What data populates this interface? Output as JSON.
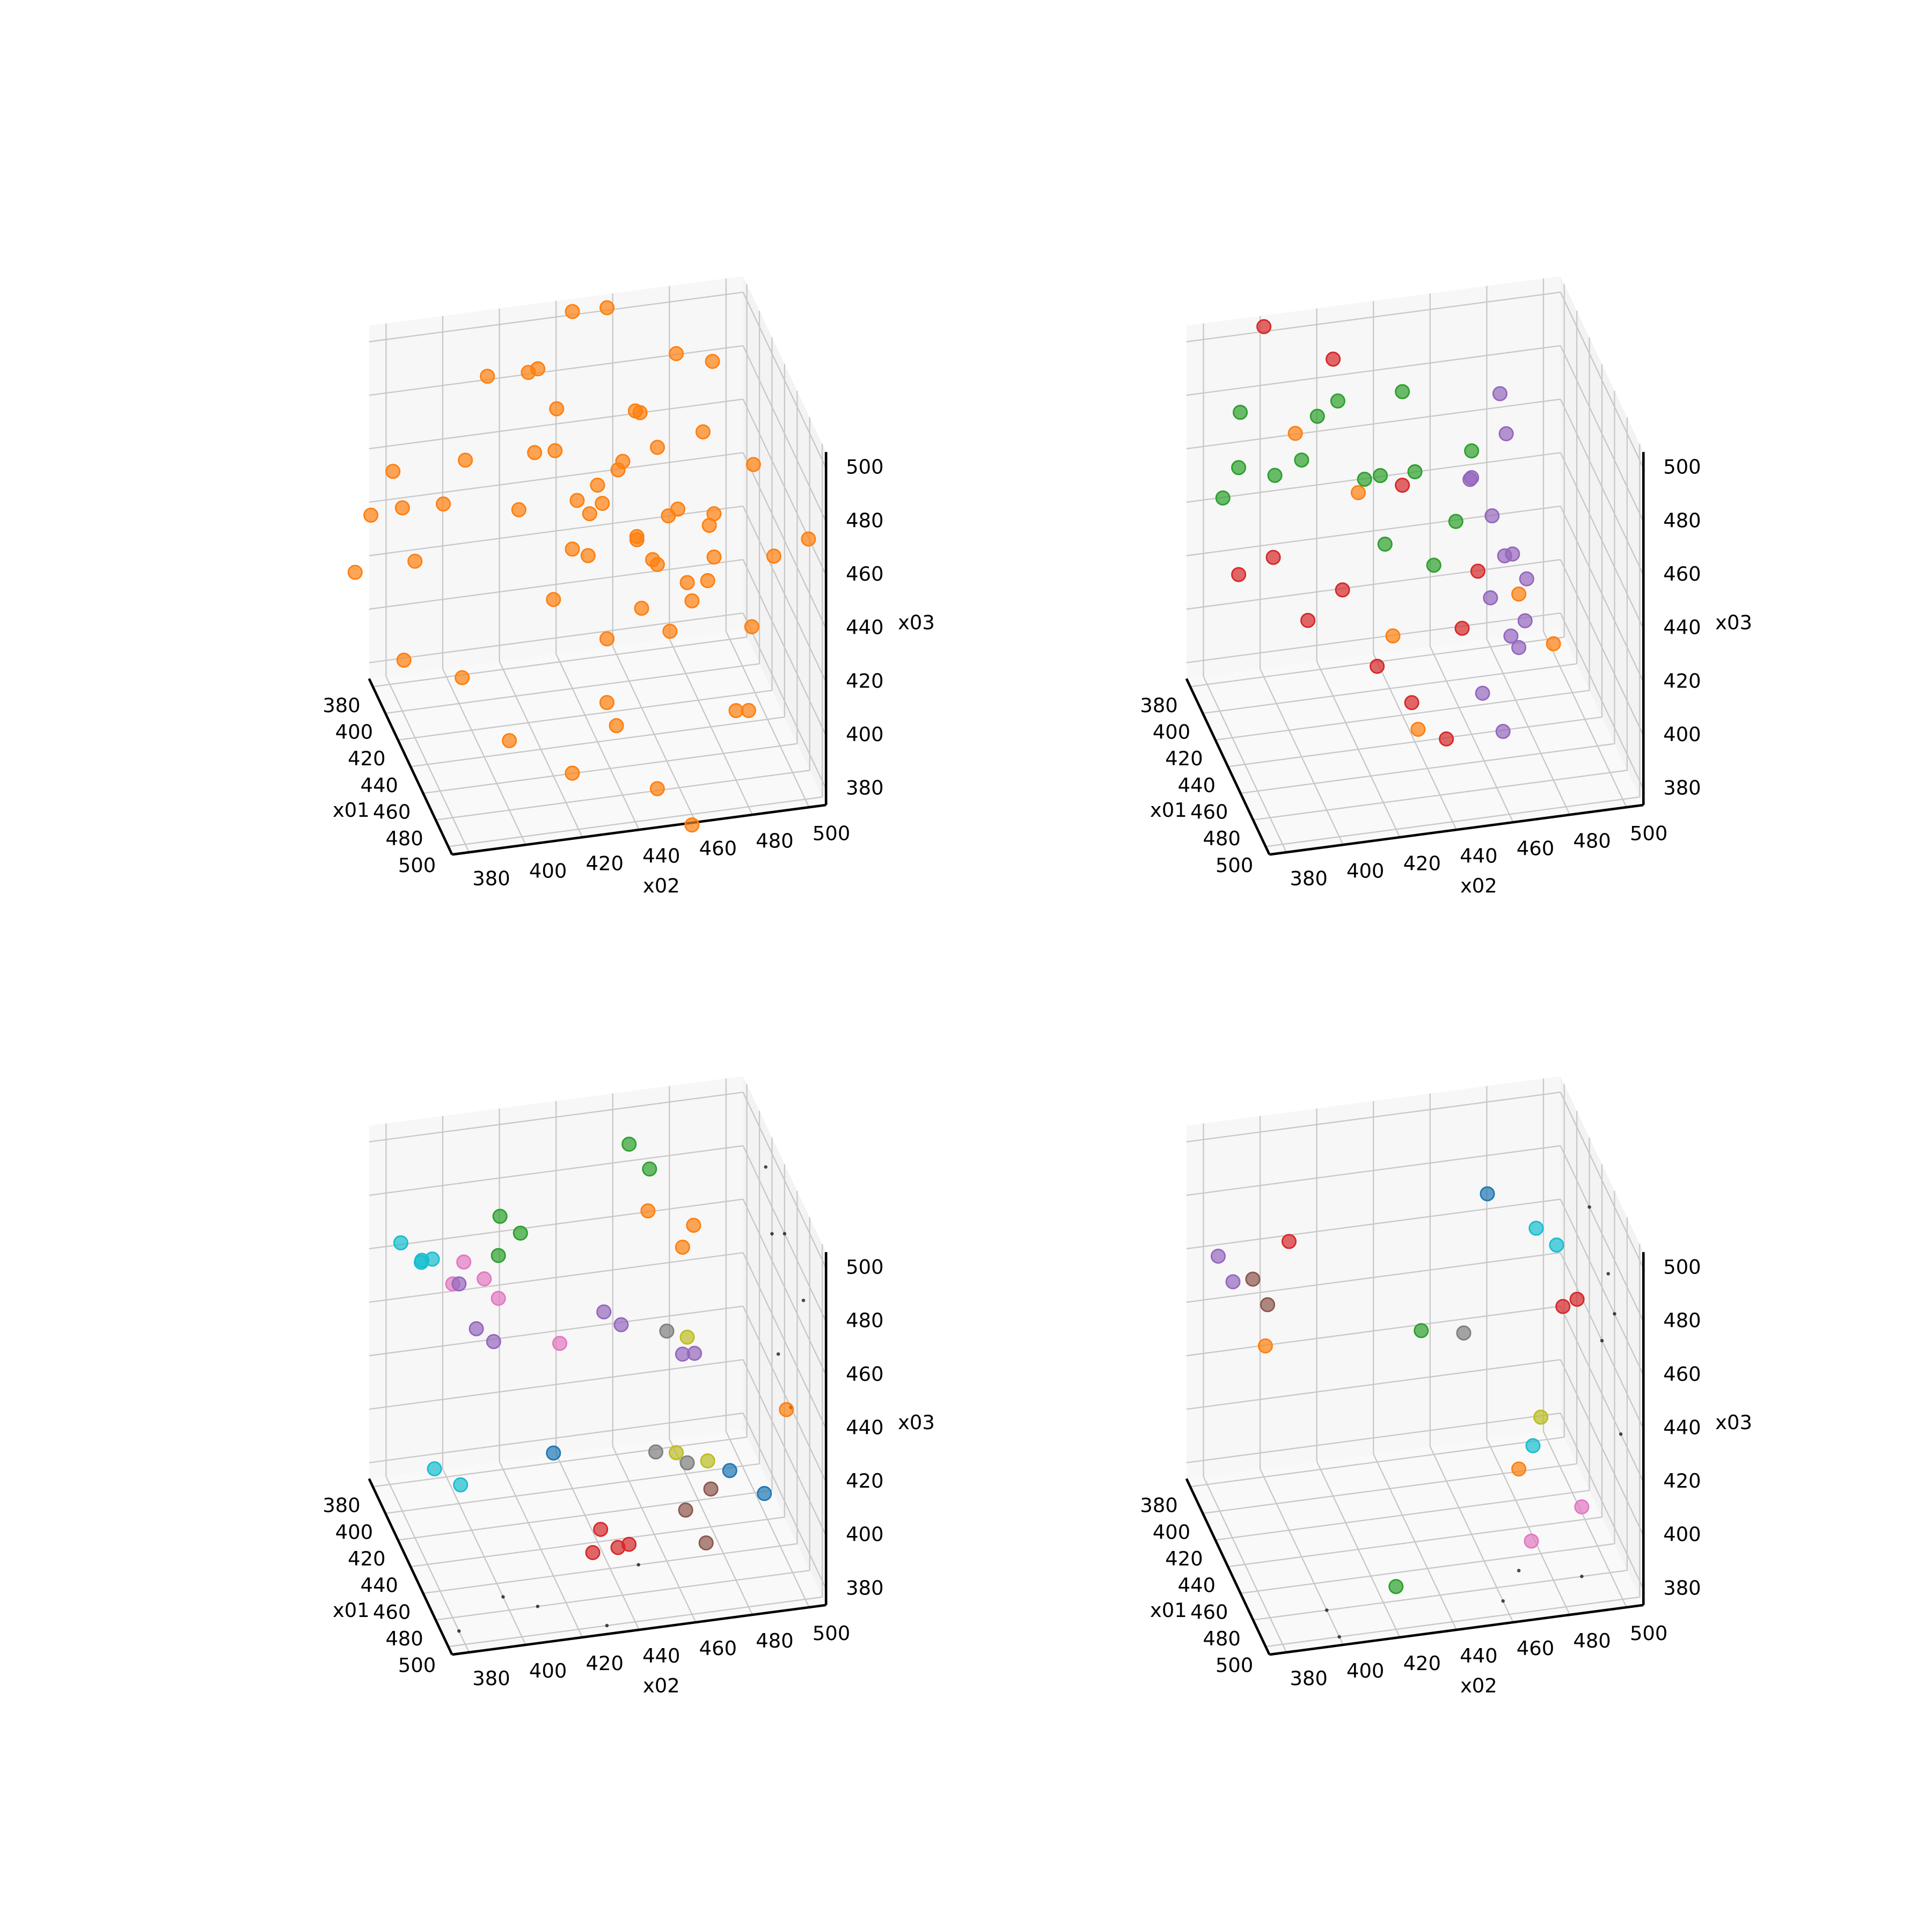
{
  "chart_data": [
    {
      "type": "scatter3d",
      "xlabel": "x01",
      "ylabel": "x02",
      "zlabel": "x03",
      "xlim": [
        374,
        506
      ],
      "ylim": [
        374,
        506
      ],
      "zlim": [
        374,
        506
      ],
      "xticks": [
        380,
        400,
        420,
        440,
        460,
        480,
        500
      ],
      "yticks": [
        380,
        400,
        420,
        440,
        460,
        480,
        500
      ],
      "zticks": [
        380,
        400,
        420,
        440,
        460,
        480,
        500
      ],
      "series": [
        {
          "color": "#ff7f0e",
          "marker_size": 30,
          "x": [
            440,
            450,
            430,
            460,
            445,
            455,
            420,
            435,
            470,
            440,
            450,
            460,
            425,
            445,
            455,
            465,
            430,
            440,
            450,
            480,
            410,
            420,
            400,
            430,
            440,
            460,
            470,
            450,
            480,
            490,
            470,
            490,
            500,
            480,
            460,
            450,
            440,
            420,
            430,
            410,
            400,
            420,
            400,
            390,
            410,
            470,
            460,
            480,
            490,
            450,
            440,
            435,
            465,
            455,
            445,
            500,
            500,
            420,
            460,
            400
          ],
          "y": [
            440,
            445,
            435,
            455,
            460,
            470,
            430,
            450,
            465,
            425,
            410,
            475,
            445,
            480,
            440,
            460,
            420,
            455,
            435,
            470,
            400,
            390,
            380,
            370,
            360,
            350,
            365,
            390,
            400,
            420,
            440,
            450,
            460,
            480,
            490,
            500,
            495,
            485,
            470,
            450,
            440,
            420,
            410,
            430,
            460,
            430,
            420,
            445,
            470,
            475,
            465,
            455,
            450,
            465,
            430,
            480,
            430,
            380,
            510,
            470
          ],
          "z": [
            470,
            480,
            460,
            450,
            440,
            430,
            490,
            475,
            445,
            485,
            470,
            460,
            455,
            440,
            420,
            425,
            480,
            495,
            465,
            450,
            470,
            460,
            450,
            480,
            470,
            460,
            430,
            410,
            400,
            390,
            395,
            380,
            370,
            400,
            420,
            440,
            470,
            500,
            510,
            520,
            515,
            505,
            495,
            490,
            480,
            460,
            440,
            470,
            480,
            490,
            455,
            445,
            435,
            465,
            450,
            410,
            420,
            440,
            450,
            460
          ]
        }
      ]
    },
    {
      "type": "scatter3d",
      "xlabel": "x01",
      "ylabel": "x02",
      "zlabel": "x03",
      "xlim": [
        374,
        506
      ],
      "ylim": [
        374,
        506
      ],
      "zlim": [
        374,
        506
      ],
      "xticks": [
        380,
        400,
        420,
        440,
        460,
        480,
        500
      ],
      "yticks": [
        380,
        400,
        420,
        440,
        460,
        480,
        500
      ],
      "zticks": [
        380,
        400,
        420,
        440,
        460,
        480,
        500
      ],
      "series": [
        {
          "color": "#d62728",
          "marker_size": 30,
          "x": [
            430,
            450,
            470,
            440,
            460,
            480,
            420,
            400,
            380,
            470,
            490,
            450
          ],
          "y": [
            380,
            400,
            420,
            390,
            410,
            430,
            440,
            420,
            400,
            450,
            440,
            460
          ],
          "z": [
            440,
            430,
            420,
            450,
            445,
            410,
            460,
            500,
            505,
            430,
            400,
            440
          ]
        },
        {
          "color": "#ff7f0e",
          "marker_size": 30,
          "x": [
            450,
            440,
            470,
            480,
            430,
            490
          ],
          "y": [
            430,
            420,
            470,
            480,
            400,
            430
          ],
          "z": [
            420,
            470,
            440,
            425,
            490,
            405
          ]
        },
        {
          "color": "#9467bd",
          "marker_size": 30,
          "x": [
            440,
            450,
            460,
            470,
            480,
            470,
            460,
            450,
            480,
            490,
            460,
            470,
            440,
            480
          ],
          "y": [
            460,
            465,
            470,
            460,
            465,
            470,
            455,
            470,
            455,
            460,
            475,
            465,
            470,
            470
          ],
          "z": [
            470,
            460,
            450,
            440,
            430,
            420,
            480,
            490,
            410,
            400,
            440,
            455,
            500,
            435
          ]
        },
        {
          "color": "#2ca02c",
          "marker_size": 30,
          "x": [
            430,
            440,
            420,
            450,
            430,
            440,
            460,
            420,
            410,
            450,
            470,
            440,
            430,
            420,
            460
          ],
          "y": [
            380,
            400,
            410,
            420,
            430,
            440,
            450,
            395,
            385,
            370,
            440,
            460,
            415,
            440,
            425
          ],
          "z": [
            480,
            485,
            490,
            480,
            470,
            475,
            465,
            470,
            490,
            480,
            455,
            480,
            500,
            495,
            460
          ]
        }
      ]
    },
    {
      "type": "scatter3d",
      "xlabel": "x01",
      "ylabel": "x02",
      "zlabel": "x03",
      "xlim": [
        374,
        506
      ],
      "ylim": [
        374,
        506
      ],
      "zlim": [
        374,
        506
      ],
      "xticks": [
        380,
        400,
        420,
        440,
        460,
        480,
        500
      ],
      "yticks": [
        380,
        400,
        420,
        440,
        460,
        480,
        500
      ],
      "zticks": [
        380,
        400,
        420,
        440,
        460,
        480,
        500
      ],
      "series": [
        {
          "color": "#000000",
          "marker_size": 2,
          "x": [
            470,
            480,
            490,
            500,
            460,
            420,
            440,
            430,
            450,
            470,
            410
          ],
          "y": [
            400,
            410,
            380,
            430,
            450,
            506,
            506,
            506,
            506,
            506,
            506
          ],
          "z": [
            374,
            374,
            374,
            374,
            374,
            470,
            480,
            430,
            420,
            470,
            490
          ]
        },
        {
          "color": "#17becf",
          "marker_size": 30,
          "x": [
            420,
            430,
            440,
            425,
            460,
            470
          ],
          "y": [
            375,
            380,
            378,
            385,
            378,
            385
          ],
          "z": [
            485,
            482,
            488,
            480,
            420,
            418
          ]
        },
        {
          "color": "#e377c2",
          "marker_size": 30,
          "x": [
            430,
            440,
            435,
            440,
            470
          ],
          "y": [
            395,
            400,
            390,
            405,
            420
          ],
          "z": [
            480,
            478,
            475,
            470,
            466
          ]
        },
        {
          "color": "#2ca02c",
          "marker_size": 30,
          "x": [
            420,
            430,
            440,
            400,
            410
          ],
          "y": [
            410,
            415,
            405,
            460,
            465
          ],
          "z": [
            490,
            488,
            486,
            500,
            495
          ]
        },
        {
          "color": "#ff7f0e",
          "marker_size": 30,
          "x": [
            430,
            440,
            435,
            470
          ],
          "y": [
            460,
            470,
            475,
            500
          ],
          "z": [
            490,
            480,
            485,
            430
          ]
        },
        {
          "color": "#d62728",
          "marker_size": 30,
          "x": [
            490,
            495,
            500,
            490
          ],
          "y": [
            430,
            435,
            425,
            440
          ],
          "z": [
            405,
            400,
            402,
            398
          ]
        },
        {
          "color": "#1f77b4",
          "marker_size": 30,
          "x": [
            470,
            480,
            460
          ],
          "y": [
            480,
            490,
            420
          ],
          "z": [
            410,
            405,
            420
          ]
        },
        {
          "color": "#7f7f7f",
          "marker_size": 30,
          "x": [
            460,
            470,
            465
          ],
          "y": [
            460,
            465,
            455
          ],
          "z": [
            460,
            415,
            418
          ]
        },
        {
          "color": "#bcbd22",
          "marker_size": 30,
          "x": [
            470,
            480,
            475
          ],
          "y": [
            465,
            470,
            460
          ],
          "z": [
            462,
            420,
            422
          ]
        },
        {
          "color": "#8c564b",
          "marker_size": 30,
          "x": [
            490,
            500,
            485
          ],
          "y": [
            460,
            465,
            470
          ],
          "z": [
            408,
            400,
            412
          ]
        },
        {
          "color": "#9467bd",
          "marker_size": 30,
          "x": [
            450,
            455,
            450,
            455,
            440,
            450,
            445
          ],
          "y": [
            395,
            400,
            440,
            445,
            470,
            472,
            390
          ],
          "z": [
            465,
            462,
            465,
            462,
            440,
            445,
            480
          ]
        }
      ]
    },
    {
      "type": "scatter3d",
      "xlabel": "x01",
      "ylabel": "x02",
      "zlabel": "x03",
      "xlim": [
        374,
        506
      ],
      "ylim": [
        374,
        506
      ],
      "zlim": [
        374,
        506
      ],
      "xticks": [
        380,
        400,
        420,
        440,
        460,
        480,
        500
      ],
      "yticks": [
        380,
        400,
        420,
        440,
        460,
        480,
        500
      ],
      "zticks": [
        380,
        400,
        420,
        440,
        460,
        480,
        500
      ],
      "series": [
        {
          "color": "#000000",
          "marker_size": 2,
          "x": [
            480,
            500,
            490,
            470,
            480,
            420,
            460,
            440,
            470,
            450
          ],
          "y": [
            400,
            400,
            460,
            470,
            490,
            506,
            506,
            506,
            506,
            506
          ],
          "z": [
            374,
            374,
            374,
            374,
            374,
            480,
            460,
            440,
            420,
            470
          ]
        },
        {
          "color": "#9467bd",
          "marker_size": 30,
          "x": [
            420,
            430
          ],
          "y": [
            375,
            378
          ],
          "z": [
            480,
            475
          ]
        },
        {
          "color": "#8c564b",
          "marker_size": 30,
          "x": [
            430,
            440
          ],
          "y": [
            385,
            388
          ],
          "z": [
            475,
            470
          ]
        },
        {
          "color": "#d62728",
          "marker_size": 30,
          "x": [
            420,
            450,
            450
          ],
          "y": [
            400,
            490,
            495
          ],
          "z": [
            482,
            460,
            462
          ]
        },
        {
          "color": "#ff7f0e",
          "marker_size": 30,
          "x": [
            450,
            470
          ],
          "y": [
            385,
            470
          ],
          "z": [
            460,
            412
          ]
        },
        {
          "color": "#2ca02c",
          "marker_size": 30,
          "x": [
            450,
            500
          ],
          "y": [
            440,
            420
          ],
          "z": [
            458,
            390
          ]
        },
        {
          "color": "#7f7f7f",
          "marker_size": 30,
          "x": [
            450
          ],
          "y": [
            455
          ],
          "z": [
            455
          ]
        },
        {
          "color": "#1f77b4",
          "marker_size": 30,
          "x": [
            420
          ],
          "y": [
            470
          ],
          "z": [
            490
          ]
        },
        {
          "color": "#17becf",
          "marker_size": 30,
          "x": [
            430,
            440,
            470
          ],
          "y": [
            485,
            490,
            475
          ],
          "z": [
            480,
            478,
            420
          ]
        },
        {
          "color": "#e377c2",
          "marker_size": 30,
          "x": [
            490,
            480
          ],
          "y": [
            470,
            490
          ],
          "z": [
            395,
            400
          ]
        },
        {
          "color": "#bcbd22",
          "marker_size": 30,
          "x": [
            460
          ],
          "y": [
            480
          ],
          "z": [
            425
          ]
        }
      ]
    }
  ]
}
